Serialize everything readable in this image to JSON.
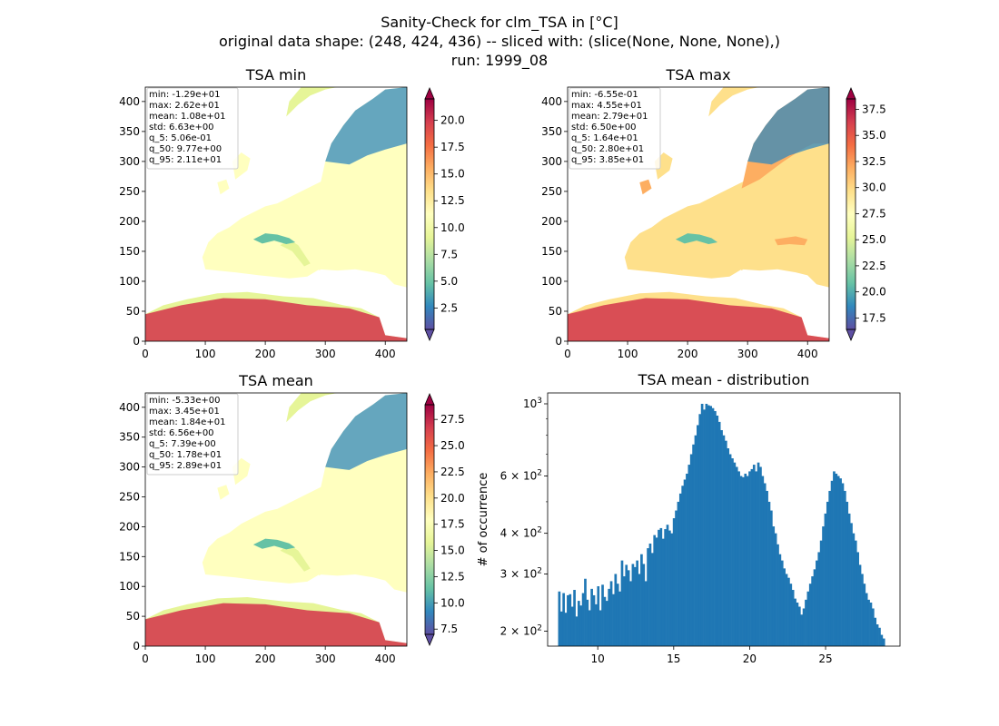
{
  "figure": {
    "title_line1": "Sanity-Check for clm_TSA in [°C]",
    "title_line2": "original data shape: (248, 424, 436) -- sliced with: (slice(None, None, None),)",
    "title_line3": "run: 1999_08"
  },
  "chart_data": [
    {
      "type": "heatmap",
      "title": "TSA min",
      "xlim": [
        0,
        436
      ],
      "ylim": [
        0,
        424
      ],
      "x_ticks": [
        "0",
        "100",
        "200",
        "300",
        "400"
      ],
      "y_ticks": [
        "0",
        "50",
        "100",
        "150",
        "200",
        "250",
        "300",
        "350",
        "400"
      ],
      "colormap": "Spectral_r",
      "colorbar_range": [
        0.5,
        22.0
      ],
      "colorbar_ticks": [
        "2.5",
        "5.0",
        "7.5",
        "10.0",
        "12.5",
        "15.0",
        "17.5",
        "20.0"
      ],
      "stats_lines": [
        "min: -1.29e+01",
        "max: 2.62e+01",
        "mean: 1.08e+01",
        "std: 6.63e+00",
        "q_5: 5.06e-01",
        "q_50: 9.77e+00",
        "q_95: 2.11e+01"
      ]
    },
    {
      "type": "heatmap",
      "title": "TSA max",
      "xlim": [
        0,
        436
      ],
      "ylim": [
        0,
        424
      ],
      "x_ticks": [
        "0",
        "100",
        "200",
        "300",
        "400"
      ],
      "y_ticks": [
        "0",
        "50",
        "100",
        "150",
        "200",
        "250",
        "300",
        "350",
        "400"
      ],
      "colormap": "Spectral_r",
      "colorbar_range": [
        16.4,
        38.5
      ],
      "colorbar_ticks": [
        "17.5",
        "20.0",
        "22.5",
        "25.0",
        "27.5",
        "30.0",
        "32.5",
        "35.0",
        "37.5"
      ],
      "stats_lines": [
        "min: -6.55e-01",
        "max: 4.55e+01",
        "mean: 2.79e+01",
        "std: 6.50e+00",
        "q_5: 1.64e+01",
        "q_50: 2.80e+01",
        "q_95: 3.85e+01"
      ]
    },
    {
      "type": "heatmap",
      "title": "TSA mean",
      "xlim": [
        0,
        436
      ],
      "ylim": [
        0,
        424
      ],
      "x_ticks": [
        "0",
        "100",
        "200",
        "300",
        "400"
      ],
      "y_ticks": [
        "0",
        "50",
        "100",
        "150",
        "200",
        "250",
        "300",
        "350",
        "400"
      ],
      "colormap": "Spectral_r",
      "colorbar_range": [
        7.0,
        28.9
      ],
      "colorbar_ticks": [
        "7.5",
        "10.0",
        "12.5",
        "15.0",
        "17.5",
        "20.0",
        "22.5",
        "25.0",
        "27.5"
      ],
      "stats_lines": [
        "min: -5.33e+00",
        "max: 3.45e+01",
        "mean: 1.84e+01",
        "std: 6.56e+00",
        "q_5: 7.39e+00",
        "q_50: 1.78e+01",
        "q_95: 2.89e+01"
      ]
    },
    {
      "type": "bar",
      "title": "TSA mean - distribution",
      "ylabel": "# of occurrence",
      "yscale": "log",
      "xlim": [
        6.7,
        29.9
      ],
      "ylim": [
        180,
        1080
      ],
      "x_ticks": [
        10,
        15,
        20,
        25
      ],
      "y_ticks": [
        200,
        300,
        400,
        600,
        1000
      ],
      "y_tick_labels": [
        {
          "mantissa": "2 × 10",
          "exp": "2"
        },
        {
          "mantissa": "3 × 10",
          "exp": "2"
        },
        {
          "mantissa": "4 × 10",
          "exp": "2"
        },
        {
          "mantissa": "6 × 10",
          "exp": "2"
        },
        {
          "mantissa": "10",
          "exp": "3"
        }
      ],
      "bar_color": "#1f77b4",
      "bin_start": 7.39,
      "bin_end": 28.9,
      "values": [
        265,
        230,
        262,
        228,
        258,
        260,
        238,
        268,
        222,
        248,
        240,
        262,
        290,
        250,
        232,
        270,
        258,
        242,
        275,
        232,
        278,
        255,
        248,
        270,
        285,
        260,
        300,
        280,
        265,
        330,
        295,
        320,
        308,
        285,
        322,
        315,
        330,
        300,
        345,
        322,
        285,
        360,
        372,
        348,
        395,
        388,
        410,
        415,
        385,
        412,
        425,
        408,
        400,
        445,
        470,
        500,
        530,
        560,
        585,
        610,
        650,
        700,
        750,
        800,
        860,
        930,
        1000,
        960,
        1000,
        990,
        985,
        970,
        950,
        920,
        880,
        830,
        800,
        770,
        730,
        700,
        680,
        660,
        640,
        620,
        600,
        595,
        610,
        600,
        620,
        630,
        650,
        620,
        660,
        640,
        600,
        570,
        540,
        500,
        470,
        420,
        400,
        370,
        345,
        330,
        312,
        300,
        292,
        280,
        268,
        252,
        245,
        238,
        225,
        235,
        250,
        265,
        280,
        295,
        310,
        330,
        350,
        380,
        420,
        460,
        500,
        540,
        580,
        620,
        610,
        600,
        590,
        570,
        540,
        500,
        460,
        430,
        400,
        380,
        350,
        320,
        300,
        280,
        262,
        250,
        245,
        235,
        220,
        210,
        205,
        195,
        190
      ]
    }
  ]
}
